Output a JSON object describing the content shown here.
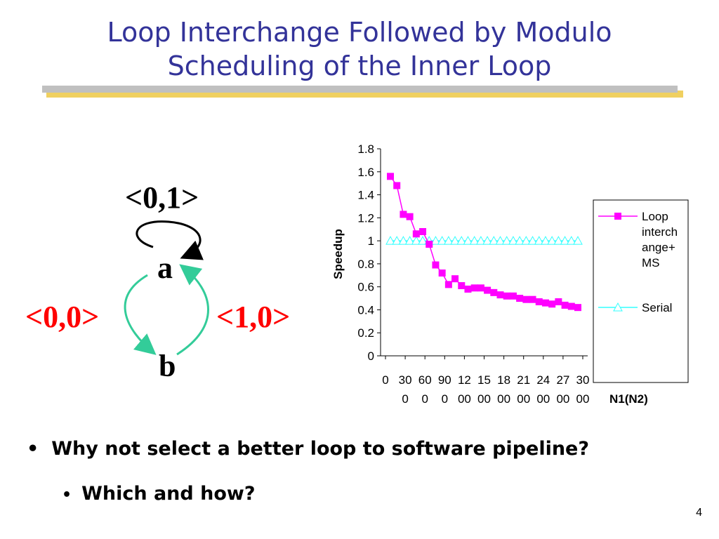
{
  "slide": {
    "title_line1": "Loop Interchange Followed by Modulo",
    "title_line2": "Scheduling of the Inner Loop",
    "page_number": "4"
  },
  "graph": {
    "node_a": "a",
    "node_b": "b",
    "self_loop_label": "<0,1>",
    "left_edge_label": "<0,0>",
    "right_edge_label": "<1,0>",
    "colors": {
      "edge": "#33cc99",
      "label_red": "#ff0000",
      "label_black": "#000000"
    }
  },
  "bullets": [
    {
      "text": "Why not select a better loop to software pipeline?",
      "level": 1
    },
    {
      "text": "Which and how?",
      "level": 2
    }
  ],
  "chart_data": {
    "type": "line",
    "title": "",
    "xlabel": "N1(N2)",
    "ylabel": "Speedup",
    "ylim": [
      0,
      1.8
    ],
    "yticks": [
      "0",
      "0.2",
      "0.4",
      "0.6",
      "0.8",
      "1",
      "1.2",
      "1.4",
      "1.6",
      "1.8"
    ],
    "xticks": [
      {
        "line1": "0",
        "line2": ""
      },
      {
        "line1": "30",
        "line2": "0"
      },
      {
        "line1": "60",
        "line2": "0"
      },
      {
        "line1": "90",
        "line2": "0"
      },
      {
        "line1": "12",
        "line2": "00"
      },
      {
        "line1": "15",
        "line2": "00"
      },
      {
        "line1": "18",
        "line2": "00"
      },
      {
        "line1": "21",
        "line2": "00"
      },
      {
        "line1": "24",
        "line2": "00"
      },
      {
        "line1": "27",
        "line2": "00"
      },
      {
        "line1": "30",
        "line2": "00"
      }
    ],
    "xlim": [
      0,
      3000
    ],
    "legend_position": "right",
    "series": [
      {
        "name": "Loop interchange+ MS",
        "legend_lines": [
          "Loop",
          "interch",
          "ange+",
          "MS"
        ],
        "color": "#ff00ff",
        "marker": "square",
        "x": [
          100,
          200,
          300,
          400,
          500,
          600,
          700,
          800,
          900,
          1000,
          1100,
          1200,
          1300,
          1400,
          1500,
          1600,
          1700,
          1800,
          1900,
          2000,
          2100,
          2200,
          2300,
          2400,
          2500,
          2600,
          2700,
          2800,
          2900,
          3000
        ],
        "values": [
          1.56,
          1.48,
          1.23,
          1.21,
          1.06,
          1.08,
          0.97,
          0.79,
          0.72,
          0.62,
          0.67,
          0.61,
          0.58,
          0.59,
          0.59,
          0.57,
          0.55,
          0.53,
          0.52,
          0.52,
          0.5,
          0.49,
          0.49,
          0.47,
          0.46,
          0.45,
          0.47,
          0.44,
          0.43,
          0.42
        ]
      },
      {
        "name": "Serial",
        "legend_lines": [
          "Serial"
        ],
        "color": "#33ffff",
        "marker": "triangle",
        "x": [
          100,
          200,
          300,
          400,
          500,
          600,
          700,
          800,
          900,
          1000,
          1100,
          1200,
          1300,
          1400,
          1500,
          1600,
          1700,
          1800,
          1900,
          2000,
          2100,
          2200,
          2300,
          2400,
          2500,
          2600,
          2700,
          2800,
          2900,
          3000
        ],
        "values": [
          1,
          1,
          1,
          1,
          1,
          1,
          1,
          1,
          1,
          1,
          1,
          1,
          1,
          1,
          1,
          1,
          1,
          1,
          1,
          1,
          1,
          1,
          1,
          1,
          1,
          1,
          1,
          1,
          1,
          1
        ]
      }
    ]
  }
}
